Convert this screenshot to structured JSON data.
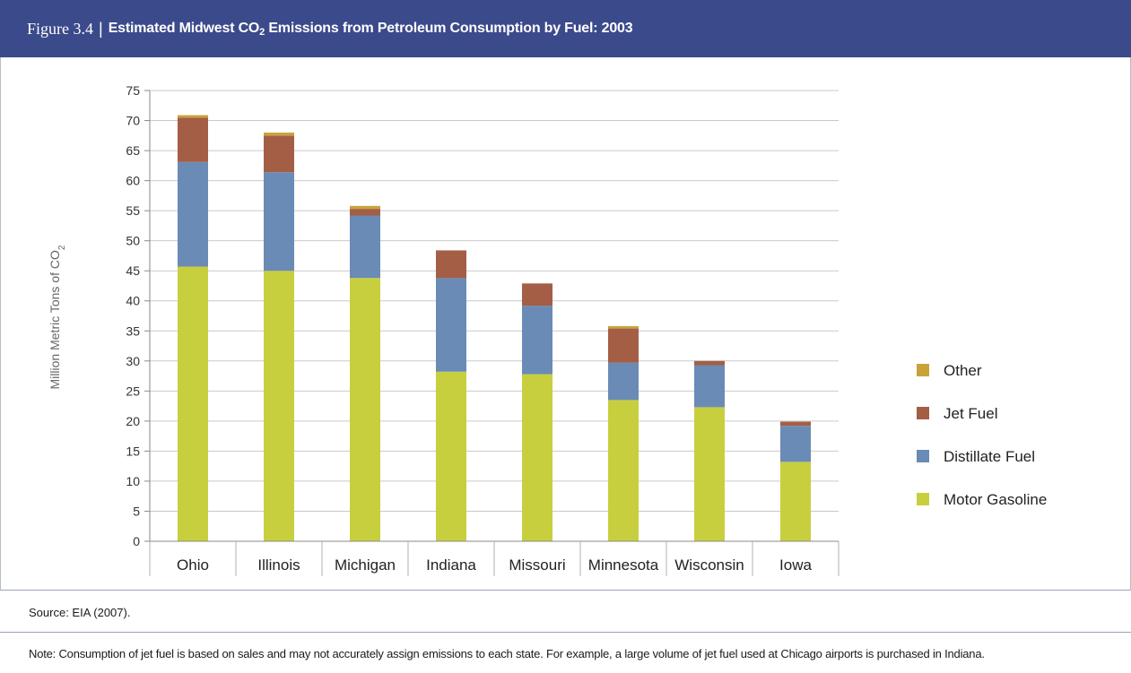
{
  "header": {
    "figure_label": "Figure 3.4",
    "separator": "|",
    "title_pre": "Estimated Midwest CO",
    "title_sub": "2",
    "title_post": " Emissions from Petroleum Consumption by Fuel: 2003"
  },
  "colors": {
    "header_bg": "#3b4a8a",
    "Motor Gasoline": "#c8cf3f",
    "Distillate Fuel": "#6a8bb5",
    "Jet Fuel": "#a45e45",
    "Other": "#c9a33a"
  },
  "chart_data": {
    "type": "bar",
    "stacked": true,
    "categories": [
      "Ohio",
      "Illinois",
      "Michigan",
      "Indiana",
      "Missouri",
      "Minnesota",
      "Wisconsin",
      "Iowa"
    ],
    "series": [
      {
        "name": "Motor Gasoline",
        "values": [
          45.7,
          45.0,
          43.8,
          28.2,
          27.8,
          23.5,
          22.3,
          13.2
        ]
      },
      {
        "name": "Distillate Fuel",
        "values": [
          17.4,
          16.4,
          10.4,
          15.6,
          11.4,
          6.2,
          7.0,
          6.0
        ]
      },
      {
        "name": "Jet Fuel",
        "values": [
          7.4,
          6.1,
          1.1,
          4.6,
          3.7,
          5.7,
          0.7,
          0.7
        ]
      },
      {
        "name": "Other",
        "values": [
          0.4,
          0.5,
          0.5,
          0.0,
          0.0,
          0.4,
          0.0,
          0.0
        ]
      }
    ],
    "ylabel_pre": "Million Metric Tons of CO",
    "ylabel_sub": "2",
    "ylim": [
      0,
      75
    ],
    "yticks": [
      0,
      5,
      10,
      15,
      20,
      25,
      30,
      35,
      40,
      45,
      50,
      55,
      60,
      65,
      70,
      75
    ],
    "grid": true,
    "legend_position": "right",
    "legend_order": [
      "Other",
      "Jet Fuel",
      "Distillate Fuel",
      "Motor Gasoline"
    ]
  },
  "footer": {
    "source": "Source: EIA (2007).",
    "note": "Note: Consumption of jet fuel is based on sales and may not accurately assign emissions to each state. For example, a large volume of jet fuel used at Chicago airports is purchased in Indiana."
  }
}
